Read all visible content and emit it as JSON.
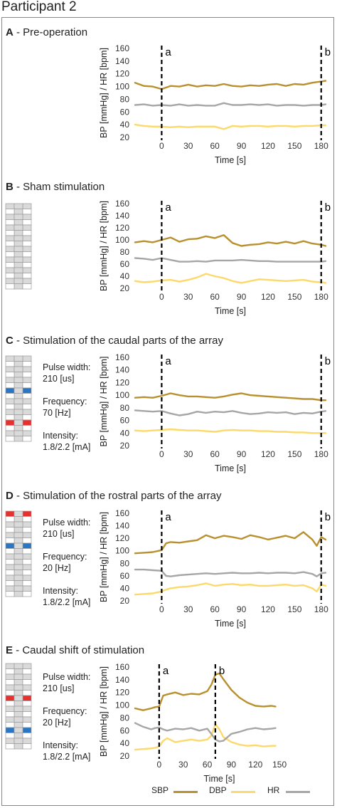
{
  "figure_title": "Participant 2",
  "colors": {
    "sbp": "#b8902e",
    "dbp": "#fcd96a",
    "hr": "#a6a6a6",
    "red": "#e8302f",
    "blue": "#2876c4",
    "grey_cell": "#dadada"
  },
  "panels": [
    {
      "letter": "A",
      "title": " - Pre-operation",
      "params": null
    },
    {
      "letter": "B",
      "title": " - Sham stimulation",
      "params": null
    },
    {
      "letter": "C",
      "title": " - Stimulation of the caudal parts of the array",
      "params": {
        "pw_label": "Pulse width:",
        "pw_value": "210 [us]",
        "freq_label": "Frequency:",
        "freq_value": "70 [Hz]",
        "int_label": "Intensity:",
        "int_value": "1.8/2.2 [mA]"
      }
    },
    {
      "letter": "D",
      "title": " - Stimulation of the rostral parts of the array",
      "params": {
        "pw_label": "Pulse width:",
        "pw_value": "210 [us]",
        "freq_label": "Frequency:",
        "freq_value": "20 [Hz]",
        "int_label": "Intensity:",
        "int_value": "1.8/2.2 [mA]"
      }
    },
    {
      "letter": "E",
      "title": " - Caudal shift of stimulation",
      "params": {
        "pw_label": "Pulse width:",
        "pw_value": "210 [us]",
        "freq_label": "Frequency:",
        "freq_value": "20 [Hz]",
        "int_label": "Intensity:",
        "int_value": "1.8/2.2 [mA]"
      }
    }
  ],
  "legend": {
    "sbp": "SBP",
    "dbp": "DBP",
    "hr": "HR"
  },
  "chart_data": [
    {
      "type": "line",
      "panel": "A",
      "xlabel": "Time [s]",
      "ylabel": "BP [mmHg] / HR [bpm]",
      "xlim": [
        -30,
        185
      ],
      "ylim": [
        20,
        160
      ],
      "xticks": [
        0,
        30,
        60,
        90,
        120,
        150,
        180
      ],
      "yticks": [
        20,
        40,
        60,
        80,
        100,
        120,
        140,
        160
      ],
      "markers": [
        {
          "x": 0,
          "label": "a"
        },
        {
          "x": 180,
          "label": "b"
        }
      ],
      "series": [
        {
          "name": "SBP",
          "x": [
            -30,
            -20,
            -10,
            0,
            10,
            20,
            30,
            40,
            50,
            60,
            70,
            80,
            90,
            100,
            110,
            120,
            130,
            140,
            150,
            160,
            170,
            180,
            185
          ],
          "values": [
            106,
            101,
            100,
            96,
            101,
            100,
            103,
            100,
            102,
            101,
            104,
            101,
            100,
            102,
            101,
            103,
            104,
            101,
            104,
            103,
            106,
            108,
            109
          ]
        },
        {
          "name": "DBP",
          "x": [
            -30,
            -20,
            -10,
            0,
            10,
            20,
            30,
            40,
            50,
            60,
            70,
            80,
            90,
            100,
            110,
            120,
            130,
            140,
            150,
            160,
            170,
            180,
            185
          ],
          "values": [
            40,
            38,
            37,
            37,
            36,
            37,
            36,
            37,
            37,
            37,
            33,
            38,
            37,
            38,
            38,
            37,
            38,
            38,
            37,
            38,
            38,
            39,
            39
          ]
        },
        {
          "name": "HR",
          "x": [
            -30,
            -20,
            -10,
            0,
            10,
            20,
            30,
            40,
            50,
            60,
            70,
            80,
            90,
            100,
            110,
            120,
            130,
            140,
            150,
            160,
            170,
            180,
            185
          ],
          "values": [
            71,
            72,
            70,
            71,
            70,
            72,
            70,
            71,
            70,
            70,
            74,
            71,
            71,
            72,
            71,
            72,
            70,
            71,
            71,
            70,
            71,
            71,
            72
          ]
        }
      ]
    },
    {
      "type": "line",
      "panel": "B",
      "xlabel": "Time [s]",
      "ylabel": "BP [mmHg] / HR [bpm]",
      "xlim": [
        -30,
        185
      ],
      "ylim": [
        20,
        160
      ],
      "xticks": [
        0,
        30,
        60,
        90,
        120,
        150,
        180
      ],
      "yticks": [
        20,
        40,
        60,
        80,
        100,
        120,
        140,
        160
      ],
      "markers": [
        {
          "x": 0,
          "label": "a"
        },
        {
          "x": 180,
          "label": "b"
        }
      ],
      "series": [
        {
          "name": "SBP",
          "x": [
            -30,
            -20,
            -10,
            0,
            10,
            20,
            30,
            40,
            50,
            60,
            70,
            80,
            90,
            100,
            110,
            120,
            130,
            140,
            150,
            160,
            170,
            180,
            185
          ],
          "values": [
            96,
            98,
            96,
            100,
            104,
            97,
            101,
            102,
            106,
            103,
            108,
            95,
            90,
            92,
            93,
            96,
            94,
            97,
            94,
            98,
            94,
            92,
            90
          ]
        },
        {
          "name": "DBP",
          "x": [
            -30,
            -20,
            -10,
            0,
            10,
            20,
            30,
            40,
            50,
            60,
            70,
            80,
            90,
            100,
            110,
            120,
            130,
            140,
            150,
            160,
            170,
            180,
            185
          ],
          "values": [
            32,
            30,
            31,
            33,
            34,
            31,
            34,
            38,
            44,
            40,
            37,
            32,
            29,
            32,
            35,
            34,
            33,
            32,
            33,
            34,
            31,
            30,
            29
          ]
        },
        {
          "name": "HR",
          "x": [
            -30,
            -20,
            -10,
            0,
            10,
            20,
            30,
            40,
            50,
            60,
            70,
            80,
            90,
            100,
            110,
            120,
            130,
            140,
            150,
            160,
            170,
            180,
            185
          ],
          "values": [
            70,
            69,
            67,
            70,
            67,
            64,
            64,
            65,
            64,
            66,
            66,
            66,
            67,
            66,
            65,
            65,
            64,
            64,
            64,
            64,
            64,
            64,
            65
          ]
        }
      ]
    },
    {
      "type": "line",
      "panel": "C",
      "xlabel": "Time [s]",
      "ylabel": "BP [mmHg] / HR [bpm]",
      "xlim": [
        -30,
        185
      ],
      "ylim": [
        20,
        160
      ],
      "xticks": [
        0,
        30,
        60,
        90,
        120,
        150,
        180
      ],
      "yticks": [
        20,
        40,
        60,
        80,
        100,
        120,
        140,
        160
      ],
      "markers": [
        {
          "x": 0,
          "label": "a"
        },
        {
          "x": 180,
          "label": "b"
        }
      ],
      "series": [
        {
          "name": "SBP",
          "x": [
            -30,
            -20,
            -10,
            0,
            10,
            20,
            30,
            40,
            50,
            60,
            70,
            80,
            90,
            100,
            110,
            120,
            130,
            140,
            150,
            160,
            170,
            180,
            185
          ],
          "values": [
            96,
            97,
            96,
            99,
            103,
            100,
            98,
            98,
            97,
            96,
            98,
            101,
            103,
            100,
            99,
            98,
            97,
            96,
            95,
            94,
            94,
            92,
            92
          ]
        },
        {
          "name": "DBP",
          "x": [
            -30,
            -20,
            -10,
            0,
            10,
            20,
            30,
            40,
            50,
            60,
            70,
            80,
            90,
            100,
            110,
            120,
            130,
            140,
            150,
            160,
            170,
            180,
            185
          ],
          "values": [
            44,
            43,
            44,
            45,
            46,
            45,
            44,
            44,
            43,
            42,
            44,
            45,
            44,
            44,
            43,
            43,
            42,
            42,
            41,
            41,
            40,
            40,
            40
          ]
        },
        {
          "name": "HR",
          "x": [
            -30,
            -20,
            -10,
            0,
            10,
            20,
            30,
            40,
            50,
            60,
            70,
            80,
            90,
            100,
            110,
            120,
            130,
            140,
            150,
            160,
            170,
            180,
            185
          ],
          "values": [
            76,
            75,
            74,
            75,
            71,
            68,
            70,
            74,
            72,
            74,
            73,
            75,
            72,
            70,
            71,
            73,
            72,
            73,
            70,
            72,
            71,
            74,
            75
          ]
        }
      ]
    },
    {
      "type": "line",
      "panel": "D",
      "xlabel": "Time [s]",
      "ylabel": "BP [mmHg] / HR [bpm]",
      "xlim": [
        -30,
        185
      ],
      "ylim": [
        20,
        160
      ],
      "xticks": [
        0,
        30,
        60,
        90,
        120,
        150,
        180
      ],
      "yticks": [
        20,
        40,
        60,
        80,
        100,
        120,
        140,
        160
      ],
      "markers": [
        {
          "x": 0,
          "label": "a"
        },
        {
          "x": 180,
          "label": "b"
        }
      ],
      "series": [
        {
          "name": "SBP",
          "x": [
            -30,
            -20,
            -10,
            0,
            5,
            10,
            20,
            30,
            40,
            50,
            60,
            70,
            80,
            90,
            100,
            110,
            120,
            130,
            140,
            150,
            160,
            170,
            175,
            180,
            185
          ],
          "values": [
            96,
            97,
            98,
            101,
            112,
            114,
            113,
            115,
            117,
            125,
            120,
            124,
            122,
            119,
            125,
            122,
            118,
            121,
            124,
            120,
            130,
            118,
            108,
            122,
            118
          ]
        },
        {
          "name": "DBP",
          "x": [
            -30,
            -20,
            -10,
            0,
            5,
            10,
            20,
            30,
            40,
            50,
            60,
            70,
            80,
            90,
            100,
            110,
            120,
            130,
            140,
            150,
            160,
            170,
            175,
            180,
            185
          ],
          "values": [
            30,
            31,
            32,
            35,
            38,
            40,
            42,
            43,
            45,
            48,
            44,
            46,
            47,
            45,
            46,
            44,
            44,
            45,
            46,
            44,
            45,
            40,
            35,
            46,
            44
          ]
        },
        {
          "name": "HR",
          "x": [
            -30,
            -20,
            -10,
            0,
            5,
            10,
            20,
            30,
            40,
            50,
            60,
            70,
            80,
            90,
            100,
            110,
            120,
            130,
            140,
            150,
            160,
            170,
            175,
            180,
            185
          ],
          "values": [
            70,
            70,
            69,
            68,
            60,
            59,
            61,
            62,
            63,
            64,
            63,
            64,
            65,
            64,
            64,
            65,
            64,
            65,
            65,
            64,
            66,
            63,
            59,
            64,
            65
          ]
        }
      ]
    },
    {
      "type": "line",
      "panel": "E",
      "xlabel": "Time [s]",
      "ylabel": "BP [mmHg] / HR [bpm]",
      "xlim": [
        -30,
        180
      ],
      "ylim": [
        20,
        160
      ],
      "xticks": [
        0,
        30,
        60,
        90,
        120,
        150
      ],
      "yticks": [
        20,
        40,
        60,
        80,
        100,
        120,
        140,
        160
      ],
      "markers": [
        {
          "x": 0,
          "label": "a"
        },
        {
          "x": 70,
          "label": "b"
        }
      ],
      "series": [
        {
          "name": "SBP",
          "x": [
            -30,
            -20,
            -10,
            -5,
            0,
            5,
            10,
            20,
            30,
            40,
            50,
            60,
            65,
            70,
            75,
            80,
            90,
            100,
            110,
            120,
            130,
            140,
            145
          ],
          "values": [
            95,
            92,
            95,
            97,
            98,
            115,
            117,
            120,
            116,
            118,
            117,
            122,
            132,
            148,
            150,
            141,
            124,
            112,
            104,
            99,
            98,
            99,
            98
          ]
        },
        {
          "name": "DBP",
          "x": [
            -30,
            -20,
            -10,
            -5,
            0,
            5,
            10,
            20,
            30,
            40,
            50,
            60,
            65,
            70,
            75,
            80,
            90,
            100,
            110,
            120,
            130,
            140,
            145
          ],
          "values": [
            30,
            31,
            32,
            33,
            35,
            44,
            48,
            42,
            44,
            46,
            44,
            46,
            52,
            70,
            62,
            50,
            42,
            38,
            36,
            37,
            35,
            36,
            36
          ]
        },
        {
          "name": "HR",
          "x": [
            -30,
            -20,
            -10,
            -5,
            0,
            5,
            10,
            20,
            30,
            40,
            50,
            60,
            65,
            70,
            75,
            80,
            90,
            100,
            110,
            120,
            130,
            140,
            145
          ],
          "values": [
            72,
            66,
            62,
            64,
            65,
            62,
            60,
            63,
            62,
            64,
            60,
            63,
            55,
            46,
            43,
            44,
            55,
            58,
            62,
            64,
            62,
            63,
            64
          ]
        }
      ]
    }
  ]
}
